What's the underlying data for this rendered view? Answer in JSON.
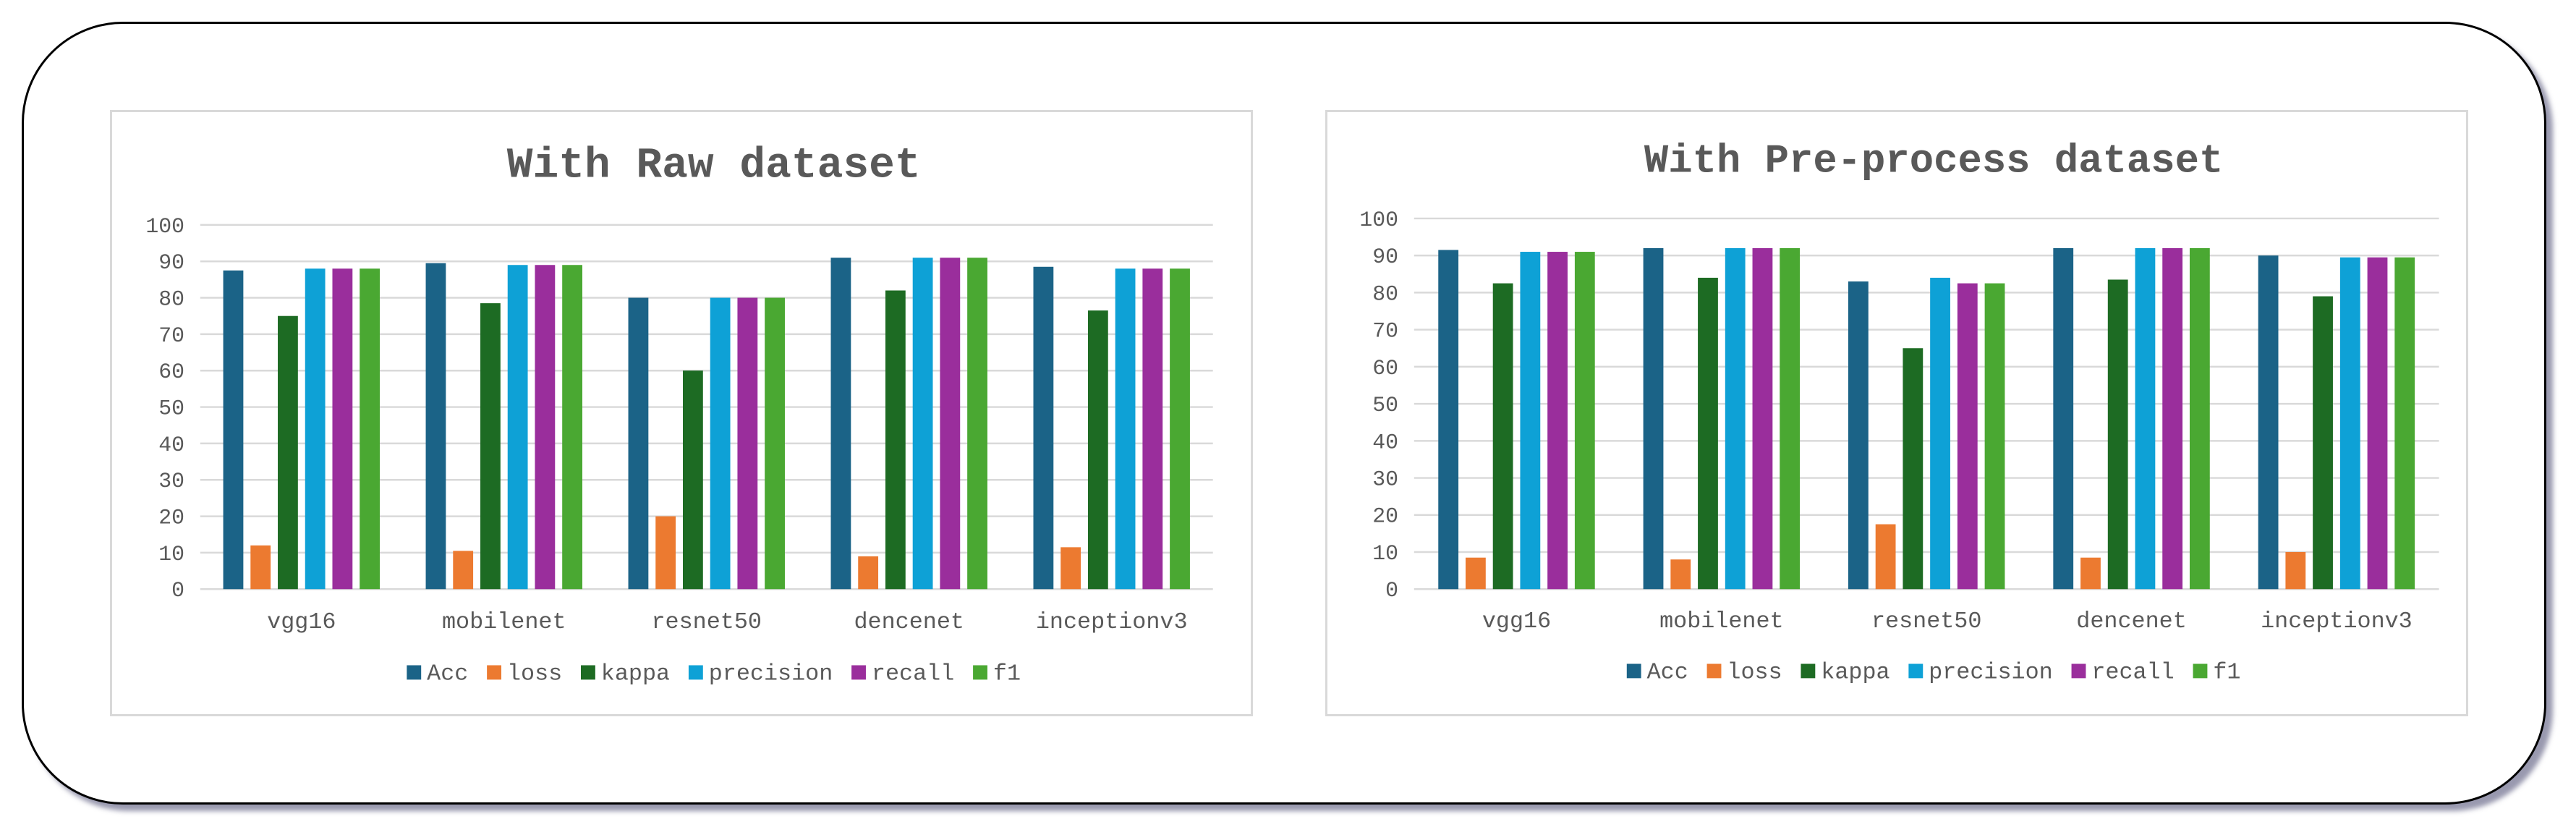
{
  "colors": {
    "Acc": "#1b6387",
    "loss": "#ec7a30",
    "kappa": "#1d6b23",
    "precision": "#0ea1d6",
    "recall": "#9a2e9c",
    "f1": "#4aa832",
    "grid": "#d9d9d9",
    "text": "#595959"
  },
  "chart_data": [
    {
      "type": "bar",
      "title": "With Raw dataset",
      "categories": [
        "vgg16",
        "mobilenet",
        "resnet50",
        "dencenet",
        "inceptionv3"
      ],
      "ylim": [
        0,
        100
      ],
      "yticks": [
        0,
        10,
        20,
        30,
        40,
        50,
        60,
        70,
        80,
        90,
        100
      ],
      "grid": true,
      "legend_position": "bottom",
      "series": [
        {
          "name": "Acc",
          "values": [
            87.5,
            89.5,
            80,
            91,
            88.5
          ]
        },
        {
          "name": "loss",
          "values": [
            12,
            10.5,
            20,
            9,
            11.5
          ]
        },
        {
          "name": "kappa",
          "values": [
            75,
            78.5,
            60,
            82,
            76.5
          ]
        },
        {
          "name": "precision",
          "values": [
            88,
            89,
            80,
            91,
            88
          ]
        },
        {
          "name": "recall",
          "values": [
            88,
            89,
            80,
            91,
            88
          ]
        },
        {
          "name": "f1",
          "values": [
            88,
            89,
            80,
            91,
            88
          ]
        }
      ]
    },
    {
      "type": "bar",
      "title": "With Pre-process dataset",
      "categories": [
        "vgg16",
        "mobilenet",
        "resnet50",
        "dencenet",
        "inceptionv3"
      ],
      "ylim": [
        0,
        100
      ],
      "yticks": [
        0,
        10,
        20,
        30,
        40,
        50,
        60,
        70,
        80,
        90,
        100
      ],
      "grid": true,
      "legend_position": "bottom",
      "series": [
        {
          "name": "Acc",
          "values": [
            91.5,
            92,
            83,
            92,
            90
          ]
        },
        {
          "name": "loss",
          "values": [
            8.5,
            8,
            17.5,
            8.5,
            10
          ]
        },
        {
          "name": "kappa",
          "values": [
            82.5,
            84,
            65,
            83.5,
            79
          ]
        },
        {
          "name": "precision",
          "values": [
            91,
            92,
            84,
            92,
            89.5
          ]
        },
        {
          "name": "recall",
          "values": [
            91,
            92,
            82.5,
            92,
            89.5
          ]
        },
        {
          "name": "f1",
          "values": [
            91,
            92,
            82.5,
            92,
            89.5
          ]
        }
      ]
    }
  ]
}
